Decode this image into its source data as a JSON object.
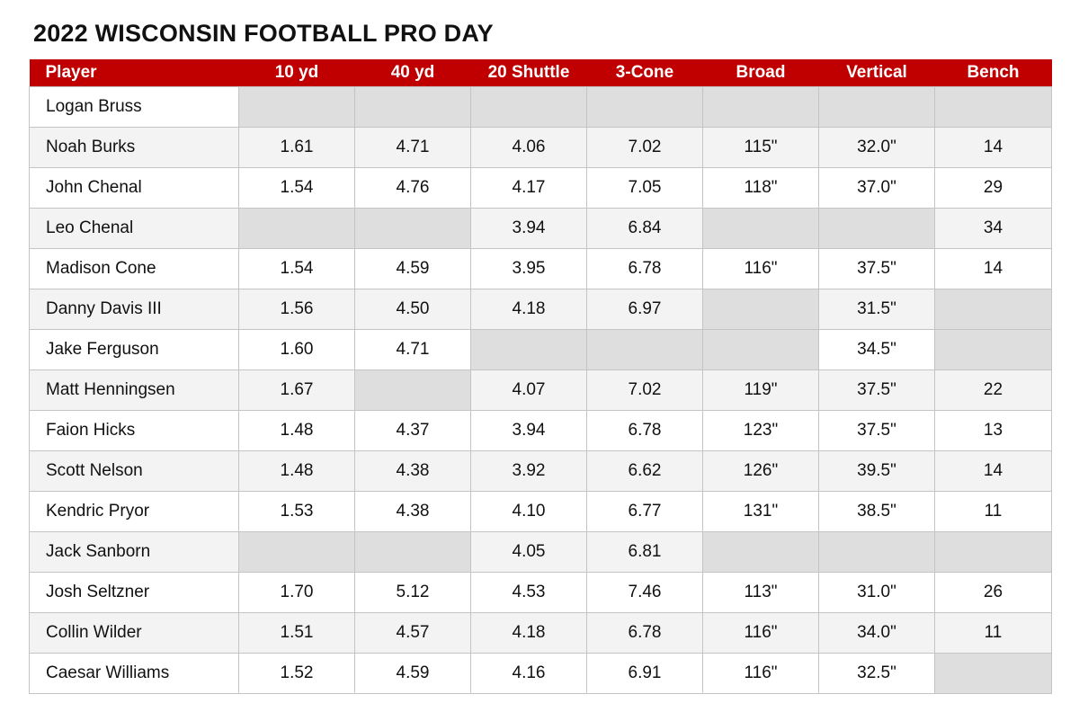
{
  "title": "2022 WISCONSIN FOOTBALL PRO DAY",
  "colors": {
    "header_background": "#c00000",
    "header_text": "#ffffff",
    "empty_cell": "#dedede",
    "alt_row": "#f3f3f3",
    "grid_line": "#c4c4c4"
  },
  "columns": [
    "Player",
    "10 yd",
    "40 yd",
    "20 Shuttle",
    "3-Cone",
    "Broad",
    "Vertical",
    "Bench"
  ],
  "rows": [
    {
      "player": "Logan Bruss",
      "ten_yd": "",
      "forty_yd": "",
      "shuttle": "",
      "three_cone": "",
      "broad": "",
      "vertical": "",
      "bench": ""
    },
    {
      "player": "Noah Burks",
      "ten_yd": "1.61",
      "forty_yd": "4.71",
      "shuttle": "4.06",
      "three_cone": "7.02",
      "broad": "115\"",
      "vertical": "32.0\"",
      "bench": "14"
    },
    {
      "player": "John Chenal",
      "ten_yd": "1.54",
      "forty_yd": "4.76",
      "shuttle": "4.17",
      "three_cone": "7.05",
      "broad": "118\"",
      "vertical": "37.0\"",
      "bench": "29"
    },
    {
      "player": "Leo Chenal",
      "ten_yd": "",
      "forty_yd": "",
      "shuttle": "3.94",
      "three_cone": "6.84",
      "broad": "",
      "vertical": "",
      "bench": "34"
    },
    {
      "player": "Madison Cone",
      "ten_yd": "1.54",
      "forty_yd": "4.59",
      "shuttle": "3.95",
      "three_cone": "6.78",
      "broad": "116\"",
      "vertical": "37.5\"",
      "bench": "14"
    },
    {
      "player": "Danny Davis III",
      "ten_yd": "1.56",
      "forty_yd": "4.50",
      "shuttle": "4.18",
      "three_cone": "6.97",
      "broad": "",
      "vertical": "31.5\"",
      "bench": ""
    },
    {
      "player": "Jake Ferguson",
      "ten_yd": "1.60",
      "forty_yd": "4.71",
      "shuttle": "",
      "three_cone": "",
      "broad": "",
      "vertical": "34.5\"",
      "bench": ""
    },
    {
      "player": "Matt Henningsen",
      "ten_yd": "1.67",
      "forty_yd": "",
      "shuttle": "4.07",
      "three_cone": "7.02",
      "broad": "119\"",
      "vertical": "37.5\"",
      "bench": "22"
    },
    {
      "player": "Faion Hicks",
      "ten_yd": "1.48",
      "forty_yd": "4.37",
      "shuttle": "3.94",
      "three_cone": "6.78",
      "broad": "123\"",
      "vertical": "37.5\"",
      "bench": "13"
    },
    {
      "player": "Scott Nelson",
      "ten_yd": "1.48",
      "forty_yd": "4.38",
      "shuttle": "3.92",
      "three_cone": "6.62",
      "broad": "126\"",
      "vertical": "39.5\"",
      "bench": "14"
    },
    {
      "player": "Kendric Pryor",
      "ten_yd": "1.53",
      "forty_yd": "4.38",
      "shuttle": "4.10",
      "three_cone": "6.77",
      "broad": "131\"",
      "vertical": "38.5\"",
      "bench": "11"
    },
    {
      "player": "Jack Sanborn",
      "ten_yd": "",
      "forty_yd": "",
      "shuttle": "4.05",
      "three_cone": "6.81",
      "broad": "",
      "vertical": "",
      "bench": ""
    },
    {
      "player": "Josh Seltzner",
      "ten_yd": "1.70",
      "forty_yd": "5.12",
      "shuttle": "4.53",
      "three_cone": "7.46",
      "broad": "113\"",
      "vertical": "31.0\"",
      "bench": "26"
    },
    {
      "player": "Collin Wilder",
      "ten_yd": "1.51",
      "forty_yd": "4.57",
      "shuttle": "4.18",
      "three_cone": "6.78",
      "broad": "116\"",
      "vertical": "34.0\"",
      "bench": "11"
    },
    {
      "player": "Caesar Williams",
      "ten_yd": "1.52",
      "forty_yd": "4.59",
      "shuttle": "4.16",
      "three_cone": "6.91",
      "broad": "116\"",
      "vertical": "32.5\"",
      "bench": ""
    }
  ]
}
